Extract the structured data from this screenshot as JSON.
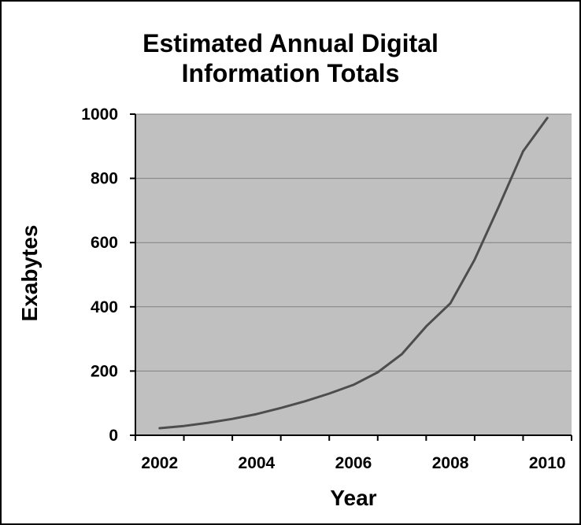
{
  "chart_data": {
    "type": "line",
    "title": [
      "Estimated Annual Digital",
      "Information Totals"
    ],
    "xlabel": "Year",
    "ylabel": "Exabytes",
    "ylim": [
      0,
      1000
    ],
    "xlim": [
      2002,
      2010
    ],
    "x_ticks": [
      "2002",
      "2004",
      "2006",
      "2008",
      "2010"
    ],
    "y_ticks": [
      "0",
      "200",
      "400",
      "600",
      "800",
      "1000"
    ],
    "grid": "horizontal",
    "legend": "none",
    "colors": {
      "plot_area": "#c0c0c0",
      "line": "#4d4d4d",
      "grid": "#808080"
    },
    "series": [
      {
        "x": [
          2002,
          2002.5,
          2003,
          2003.5,
          2004,
          2004.5,
          2005,
          2005.5,
          2006,
          2006.5,
          2007,
          2007.5,
          2008,
          2008.5,
          2009,
          2009.5,
          2010
        ],
        "values": [
          22,
          29,
          39,
          51,
          66,
          85,
          106,
          130,
          157,
          196,
          253,
          339,
          411,
          547,
          713,
          884,
          988
        ]
      }
    ]
  }
}
